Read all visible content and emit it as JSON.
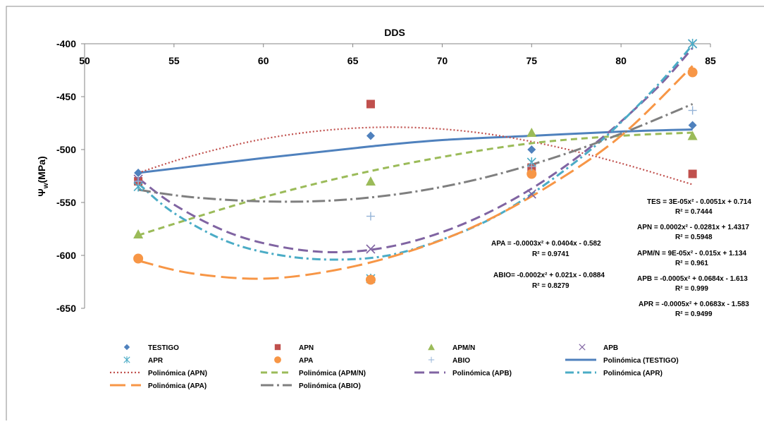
{
  "chart_data": {
    "type": "scatter",
    "title": "",
    "xlabel": "DDS",
    "ylabel": "Ψw(MPa)",
    "ylabel_main": "Ψ",
    "ylabel_sub": "w",
    "ylabel_rest": "(MPa)",
    "xlim": [
      50,
      85
    ],
    "ylim": [
      -650,
      -400
    ],
    "x_axis_position": "top",
    "x_ticks": [
      50,
      55,
      60,
      65,
      70,
      75,
      80,
      85
    ],
    "y_ticks": [
      -400,
      -450,
      -500,
      -550,
      -600,
      -650
    ],
    "grid": false,
    "legend_position": "bottom",
    "series": [
      {
        "name": "TESTIGO",
        "marker": "diamond",
        "color": "#4F81BD",
        "x": [
          53,
          66,
          75,
          84
        ],
        "y": [
          -522,
          -487,
          -500,
          -477
        ]
      },
      {
        "name": "APN",
        "marker": "square",
        "color": "#C0504D",
        "x": [
          53,
          66,
          75,
          84
        ],
        "y": [
          -530,
          -457,
          -517,
          -523
        ]
      },
      {
        "name": "APM/N",
        "marker": "triangle",
        "color": "#9BBB59",
        "x": [
          53,
          66,
          75,
          84
        ],
        "y": [
          -580,
          -530,
          -484,
          -487
        ]
      },
      {
        "name": "APB",
        "marker": "x",
        "color": "#8064A2",
        "x": [
          53,
          66,
          75,
          84
        ],
        "y": [
          -528,
          -594,
          -542,
          -400
        ]
      },
      {
        "name": "APR",
        "marker": "star",
        "color": "#4BACC6",
        "x": [
          53,
          66,
          75,
          84
        ],
        "y": [
          -535,
          -622,
          -512,
          -400
        ]
      },
      {
        "name": "APA",
        "marker": "circle",
        "color": "#F79646",
        "x": [
          53,
          66,
          75,
          84
        ],
        "y": [
          -603,
          -623,
          -523,
          -427
        ]
      },
      {
        "name": "ABIO",
        "marker": "plus",
        "color": "#95B3D7",
        "x": [
          53,
          66,
          75,
          84
        ],
        "y": [
          -530,
          -563,
          -516,
          -463
        ]
      }
    ],
    "trendlines": [
      {
        "name": "Polinómica (TESTIGO)",
        "color": "#4F81BD",
        "dash": "",
        "x": [
          53,
          60,
          66,
          70,
          75,
          80,
          84
        ],
        "y": [
          -522,
          -508,
          -497,
          -491,
          -487,
          -483,
          -481
        ]
      },
      {
        "name": "Polinómica (APN)",
        "color": "#C0504D",
        "dash": "2,3",
        "x": [
          53,
          56,
          60,
          64,
          68,
          72,
          76,
          80,
          84
        ],
        "y": [
          -522,
          -506,
          -490,
          -481,
          -479,
          -484,
          -496,
          -513,
          -533
        ]
      },
      {
        "name": "Polinómica (APM/N)",
        "color": "#9BBB59",
        "dash": "9,6",
        "x": [
          53,
          56,
          60,
          65,
          70,
          75,
          80,
          84
        ],
        "y": [
          -581,
          -565,
          -545,
          -524,
          -507,
          -494,
          -487,
          -484
        ]
      },
      {
        "name": "Polinómica (APB)",
        "color": "#8064A2",
        "dash": "14,7",
        "x": [
          53,
          55,
          58,
          61,
          64,
          67,
          70,
          73,
          76,
          79,
          82,
          84
        ],
        "y": [
          -527,
          -552,
          -578,
          -592,
          -597,
          -592,
          -578,
          -556,
          -526,
          -488,
          -442,
          -404
        ]
      },
      {
        "name": "Polinómica (APR)",
        "color": "#4BACC6",
        "dash": "12,5,3,5",
        "x": [
          53,
          55,
          58,
          61,
          64,
          67,
          70,
          73,
          76,
          79,
          82,
          84
        ],
        "y": [
          -532,
          -560,
          -587,
          -600,
          -604,
          -600,
          -585,
          -563,
          -530,
          -490,
          -440,
          -401
        ]
      },
      {
        "name": "Polinómica (APA)",
        "color": "#F79646",
        "dash": "22,8",
        "x": [
          53,
          56,
          60,
          64,
          68,
          72,
          76,
          80,
          84
        ],
        "y": [
          -605,
          -617,
          -622,
          -614,
          -597,
          -571,
          -534,
          -487,
          -421
        ]
      },
      {
        "name": "Polinómica (ABIO)",
        "color": "#7F7F7F",
        "dash": "18,5,3,5",
        "x": [
          53,
          56,
          60,
          64,
          68,
          72,
          76,
          80,
          84
        ],
        "y": [
          -538,
          -545,
          -549,
          -548,
          -541,
          -528,
          -509,
          -485,
          -457
        ]
      }
    ],
    "annotations": [
      {
        "id": "tes-eq",
        "text": "TES = 3E-05x² - 0.0051x + 0.714"
      },
      {
        "id": "tes-r2",
        "text": "R² = 0.7444"
      },
      {
        "id": "apn-eq",
        "text": "APN = 0.0002x² - 0.0281x + 1.4317"
      },
      {
        "id": "apn-r2",
        "text": "R² = 0.5948"
      },
      {
        "id": "apmn-eq",
        "text": "APM/N = 9E-05x² - 0.015x + 1.134"
      },
      {
        "id": "apmn-r2",
        "text": "R² = 0.961"
      },
      {
        "id": "apb-eq",
        "text": "APB = -0.0005x² + 0.0684x - 1.613"
      },
      {
        "id": "apb-r2",
        "text": "R² = 0.999"
      },
      {
        "id": "apr-eq",
        "text": "APR = -0.0005x² + 0.0683x - 1.583"
      },
      {
        "id": "apr-r2",
        "text": "R² = 0.9499"
      },
      {
        "id": "apa-eq",
        "text": "APA = -0.0003x² + 0.0404x - 0.582"
      },
      {
        "id": "apa-r2",
        "text": "R² = 0.9741"
      },
      {
        "id": "abio-eq",
        "text": "ABIO= -0.0002x² + 0.021x - 0.0884"
      },
      {
        "id": "abio-r2",
        "text": "R² = 0.8279"
      }
    ]
  }
}
